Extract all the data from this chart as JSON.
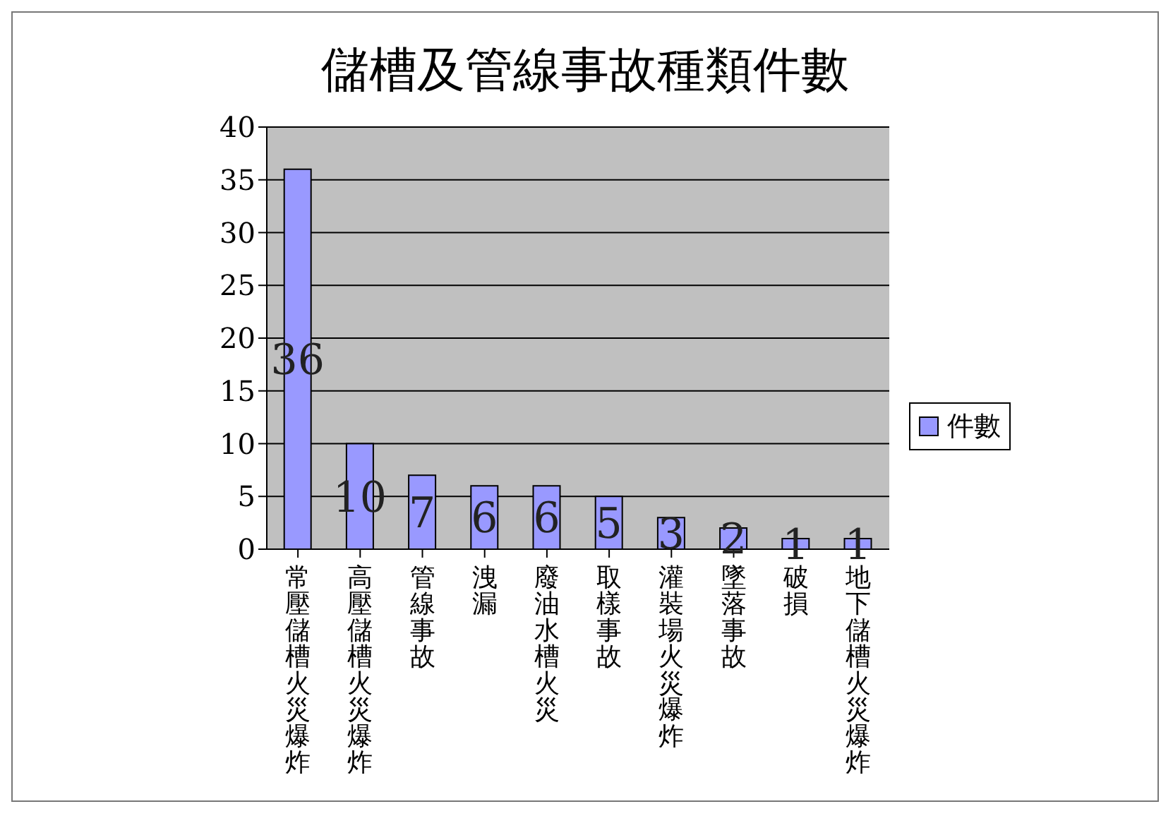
{
  "chart_data": {
    "type": "bar",
    "title": "儲槽及管線事故種類件數",
    "categories": [
      "常壓儲槽火災爆炸",
      "高壓儲槽火災爆炸",
      "管線事故",
      "洩漏",
      "廢油水槽火災",
      "取樣事故",
      "灌裝場火災爆炸",
      "墜落事故",
      "破損",
      "地下儲槽火災爆炸"
    ],
    "series": [
      {
        "name": "件數",
        "color": "#9999ff",
        "values": [
          36,
          10,
          7,
          6,
          6,
          5,
          3,
          2,
          1,
          1
        ]
      }
    ],
    "ylim": [
      0,
      40
    ],
    "yticks": [
      0,
      5,
      10,
      15,
      20,
      25,
      30,
      35,
      40
    ],
    "grid": "y",
    "legend": "right",
    "data_labels": true
  }
}
